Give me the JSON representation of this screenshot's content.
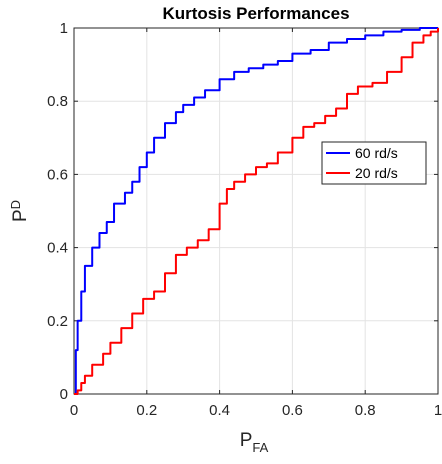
{
  "chart_data": {
    "type": "line",
    "title": "Kurtosis Performances",
    "xlabel": {
      "main": "P",
      "sub": "FA"
    },
    "ylabel": {
      "main": "P",
      "sub": "D"
    },
    "xlim": [
      0,
      1
    ],
    "ylim": [
      0,
      1
    ],
    "xticks": [
      0,
      0.2,
      0.4,
      0.6,
      0.8,
      1
    ],
    "yticks": [
      0,
      0.2,
      0.4,
      0.6,
      0.8,
      1
    ],
    "xtick_labels": [
      "0",
      "0.2",
      "0.4",
      "0.6",
      "0.8",
      "1"
    ],
    "ytick_labels": [
      "0",
      "0.2",
      "0.4",
      "0.6",
      "0.8",
      "1"
    ],
    "grid": true,
    "legend_position": "center-right",
    "series": [
      {
        "name": "60 rd/s",
        "color": "#0000ff",
        "x": [
          0,
          0.005,
          0.01,
          0.02,
          0.03,
          0.05,
          0.07,
          0.09,
          0.11,
          0.14,
          0.16,
          0.18,
          0.2,
          0.22,
          0.25,
          0.28,
          0.3,
          0.33,
          0.36,
          0.4,
          0.44,
          0.48,
          0.52,
          0.56,
          0.6,
          0.65,
          0.7,
          0.75,
          0.8,
          0.85,
          0.9,
          0.95,
          1
        ],
        "y": [
          0,
          0.12,
          0.2,
          0.28,
          0.35,
          0.4,
          0.44,
          0.47,
          0.52,
          0.55,
          0.58,
          0.62,
          0.66,
          0.7,
          0.74,
          0.77,
          0.79,
          0.81,
          0.83,
          0.86,
          0.88,
          0.89,
          0.9,
          0.91,
          0.93,
          0.94,
          0.96,
          0.97,
          0.98,
          0.99,
          0.995,
          1,
          1
        ]
      },
      {
        "name": "20 rd/s",
        "color": "#ff0000",
        "x": [
          0,
          0.01,
          0.02,
          0.03,
          0.05,
          0.08,
          0.1,
          0.13,
          0.16,
          0.19,
          0.22,
          0.25,
          0.28,
          0.31,
          0.34,
          0.37,
          0.4,
          0.42,
          0.44,
          0.47,
          0.5,
          0.53,
          0.56,
          0.6,
          0.63,
          0.66,
          0.69,
          0.72,
          0.75,
          0.78,
          0.82,
          0.86,
          0.9,
          0.93,
          0.96,
          0.98,
          1
        ],
        "y": [
          0,
          0.01,
          0.03,
          0.05,
          0.08,
          0.11,
          0.14,
          0.18,
          0.22,
          0.26,
          0.28,
          0.33,
          0.38,
          0.4,
          0.42,
          0.45,
          0.52,
          0.56,
          0.58,
          0.6,
          0.62,
          0.63,
          0.66,
          0.7,
          0.73,
          0.74,
          0.76,
          0.78,
          0.82,
          0.84,
          0.85,
          0.88,
          0.92,
          0.96,
          0.98,
          0.99,
          1
        ]
      }
    ]
  }
}
